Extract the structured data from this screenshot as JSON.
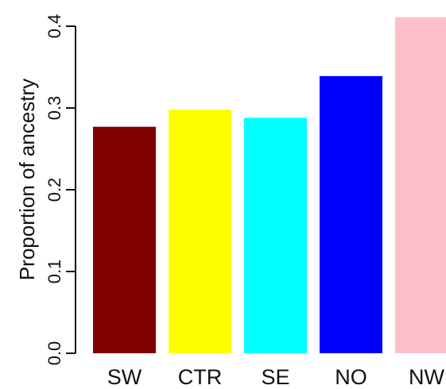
{
  "chart_data": {
    "type": "bar",
    "categories": [
      "SW",
      "CTR",
      "SE",
      "NO",
      "NW"
    ],
    "values": [
      0.277,
      0.298,
      0.288,
      0.339,
      0.411
    ],
    "colors": [
      "#800000",
      "#ffff00",
      "#00ffff",
      "#0000ff",
      "#ffc0cb"
    ],
    "title": "",
    "xlabel": "",
    "ylabel": "Proportion of ancestry",
    "ylim": [
      0,
      0.4
    ],
    "yticks": [
      0.0,
      0.1,
      0.2,
      0.3,
      0.4
    ],
    "ytick_labels": [
      "0.0",
      "0.1",
      "0.2",
      "0.3",
      "0.4"
    ],
    "grid": false,
    "legend": "none"
  }
}
